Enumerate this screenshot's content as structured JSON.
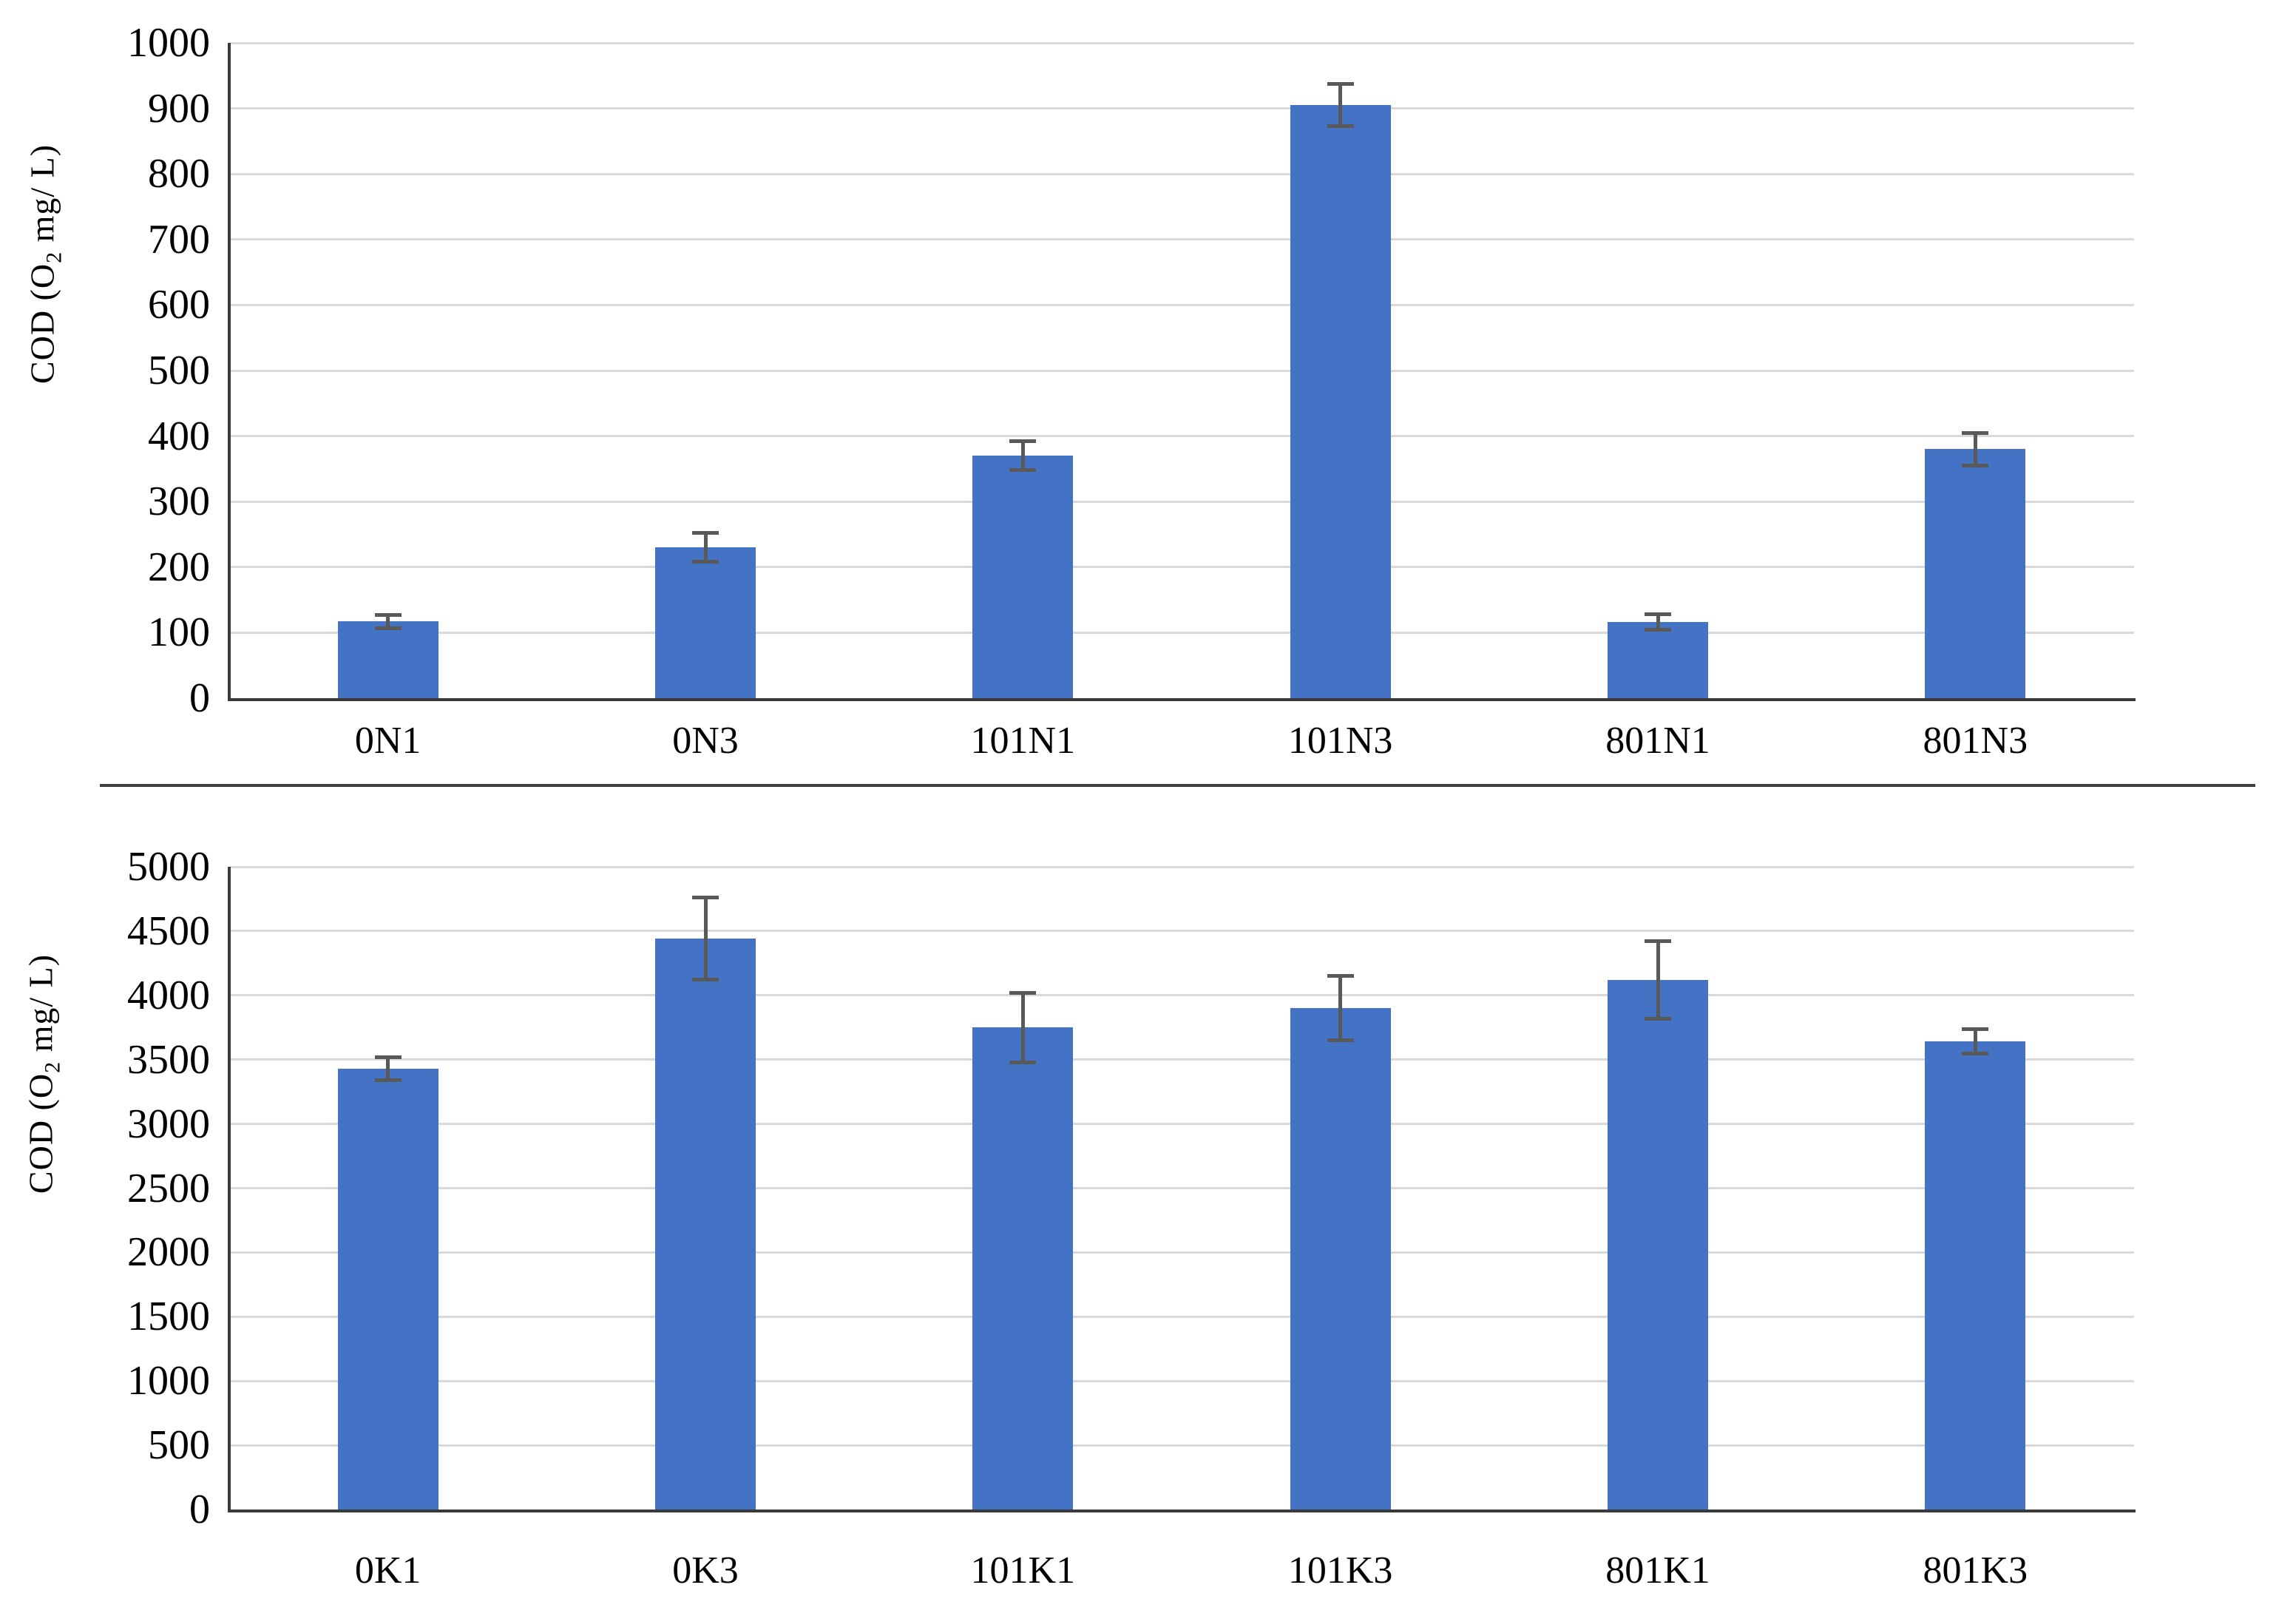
{
  "figure": {
    "background": "#ffffff",
    "divider_between_charts": true
  },
  "colors": {
    "bar_fill": "#4472C4",
    "error_bar": "#595959",
    "gridline": "#d9d9d9",
    "axis_line": "#3a3a3a",
    "divider": "#3f3f3f",
    "text": "#000000"
  },
  "chart_data": [
    {
      "type": "bar",
      "title": "",
      "ylabel": "COD (O2 mg/ L)",
      "y_axis_title": {
        "prefix": "COD (O",
        "sub": "2",
        "suffix": " mg/ L)"
      },
      "categories": [
        "0N1",
        "0N3",
        "101N1",
        "101N3",
        "801N1",
        "801N3"
      ],
      "values": [
        117,
        230,
        370,
        905,
        116,
        380
      ],
      "errors": [
        10,
        22,
        22,
        32,
        12,
        25
      ],
      "ylim": [
        0,
        1000
      ],
      "ytick_step": 100,
      "ytick_labels": [
        "0",
        "100",
        "200",
        "300",
        "400",
        "500",
        "600",
        "700",
        "800",
        "900",
        "1000"
      ],
      "grid": true,
      "legend": false,
      "bar_color": "#4472C4"
    },
    {
      "type": "bar",
      "title": "",
      "ylabel": "COD (O2 mg/ L)",
      "y_axis_title": {
        "prefix": "COD (O",
        "sub": "2",
        "suffix": " mg/ L)"
      },
      "categories": [
        "0K1",
        "0K3",
        "101K1",
        "101K3",
        "801K1",
        "801K3"
      ],
      "values": [
        3430,
        4440,
        3750,
        3900,
        4120,
        3640
      ],
      "errors": [
        90,
        320,
        270,
        250,
        300,
        95
      ],
      "ylim": [
        0,
        5000
      ],
      "ytick_step": 500,
      "ytick_labels": [
        "0",
        "500",
        "1000",
        "1500",
        "2000",
        "2500",
        "3000",
        "3500",
        "4000",
        "4500",
        "5000"
      ],
      "grid": true,
      "legend": false,
      "bar_color": "#4472C4"
    }
  ]
}
